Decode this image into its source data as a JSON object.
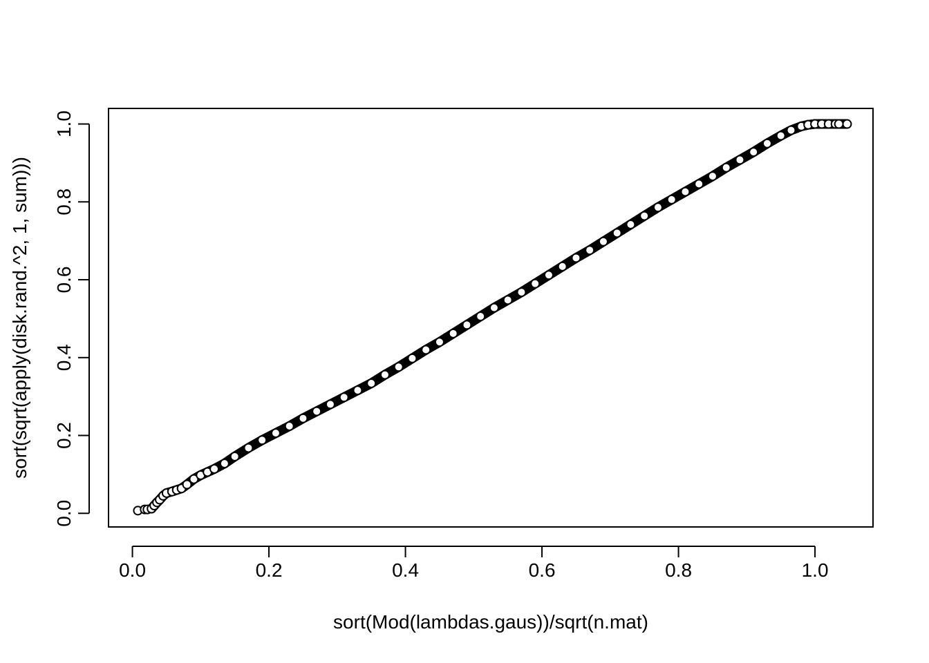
{
  "chart_data": {
    "type": "scatter",
    "title": "",
    "xlabel": "sort(Mod(lambdas.gaus))/sqrt(n.mat)",
    "ylabel": "sort(sqrt(apply(disk.rand.^2, 1, sum)))",
    "xlim": [
      -0.035,
      1.085
    ],
    "ylim": [
      -0.035,
      1.04
    ],
    "xticks": [
      0.0,
      0.2,
      0.4,
      0.6,
      0.8,
      1.0
    ],
    "yticks": [
      0.0,
      0.2,
      0.4,
      0.6,
      0.8,
      1.0
    ],
    "xtick_labels": [
      "0.0",
      "0.2",
      "0.4",
      "0.6",
      "0.8",
      "1.0"
    ],
    "ytick_labels": [
      "0.0",
      "0.2",
      "0.4",
      "0.6",
      "0.8",
      "1.0"
    ],
    "grid": false,
    "legend": "none",
    "marker": "open-circle",
    "color": "#000000",
    "series": [
      {
        "x": [
          0.008,
          0.018,
          0.022,
          0.028,
          0.032,
          0.036,
          0.04,
          0.045,
          0.05,
          0.058,
          0.065,
          0.072,
          0.08,
          0.09,
          0.1,
          0.11,
          0.12,
          0.135,
          0.15,
          0.17,
          0.19,
          0.21,
          0.23,
          0.25,
          0.27,
          0.29,
          0.31,
          0.33,
          0.35,
          0.37,
          0.39,
          0.41,
          0.43,
          0.45,
          0.47,
          0.49,
          0.51,
          0.53,
          0.55,
          0.57,
          0.59,
          0.61,
          0.63,
          0.65,
          0.67,
          0.69,
          0.71,
          0.73,
          0.75,
          0.77,
          0.79,
          0.81,
          0.83,
          0.85,
          0.87,
          0.89,
          0.91,
          0.93,
          0.95,
          0.965,
          0.98,
          0.99,
          1.0,
          1.01,
          1.02,
          1.03,
          1.035,
          1.047
        ],
        "y": [
          0.007,
          0.01,
          0.01,
          0.012,
          0.02,
          0.028,
          0.035,
          0.045,
          0.052,
          0.056,
          0.06,
          0.064,
          0.074,
          0.088,
          0.098,
          0.106,
          0.114,
          0.128,
          0.146,
          0.168,
          0.188,
          0.206,
          0.224,
          0.244,
          0.262,
          0.28,
          0.298,
          0.316,
          0.334,
          0.356,
          0.376,
          0.398,
          0.42,
          0.44,
          0.462,
          0.484,
          0.506,
          0.528,
          0.548,
          0.568,
          0.59,
          0.612,
          0.634,
          0.656,
          0.676,
          0.698,
          0.72,
          0.742,
          0.764,
          0.786,
          0.806,
          0.826,
          0.846,
          0.866,
          0.888,
          0.908,
          0.928,
          0.95,
          0.97,
          0.984,
          0.994,
          0.998,
          1.0,
          1.0,
          1.0,
          1.0,
          1.0,
          1.0
        ]
      }
    ]
  }
}
